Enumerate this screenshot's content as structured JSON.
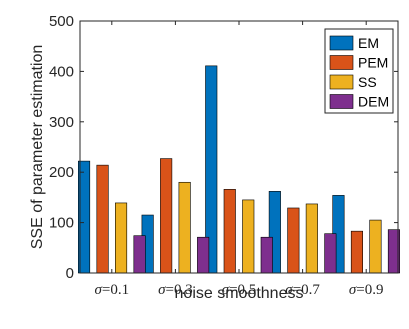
{
  "chart_data": {
    "type": "bar",
    "xlabel": "noise smoothness",
    "ylabel": "SSE of parameter estimation",
    "ylim": [
      0,
      500
    ],
    "yticks": [
      0,
      100,
      200,
      300,
      400,
      500
    ],
    "grid": false,
    "legend_position": "top-right",
    "categories": [
      {
        "prefix": "σ",
        "suffix": "=0.1"
      },
      {
        "prefix": "σ",
        "suffix": "=0.3"
      },
      {
        "prefix": "σ",
        "suffix": "=0.5"
      },
      {
        "prefix": "σ",
        "suffix": "=0.7"
      },
      {
        "prefix": "σ",
        "suffix": "=0.9"
      }
    ],
    "series": [
      {
        "name": "EM",
        "color": "#0072BD",
        "values": [
          222,
          115,
          411,
          162,
          154
        ]
      },
      {
        "name": "PEM",
        "color": "#D95319",
        "values": [
          214,
          227,
          166,
          129,
          83
        ]
      },
      {
        "name": "SS",
        "color": "#EDB120",
        "values": [
          139,
          180,
          145,
          137,
          105
        ]
      },
      {
        "name": "DEM",
        "color": "#7E2F8E",
        "values": [
          74,
          71,
          71,
          78,
          86
        ]
      }
    ]
  }
}
